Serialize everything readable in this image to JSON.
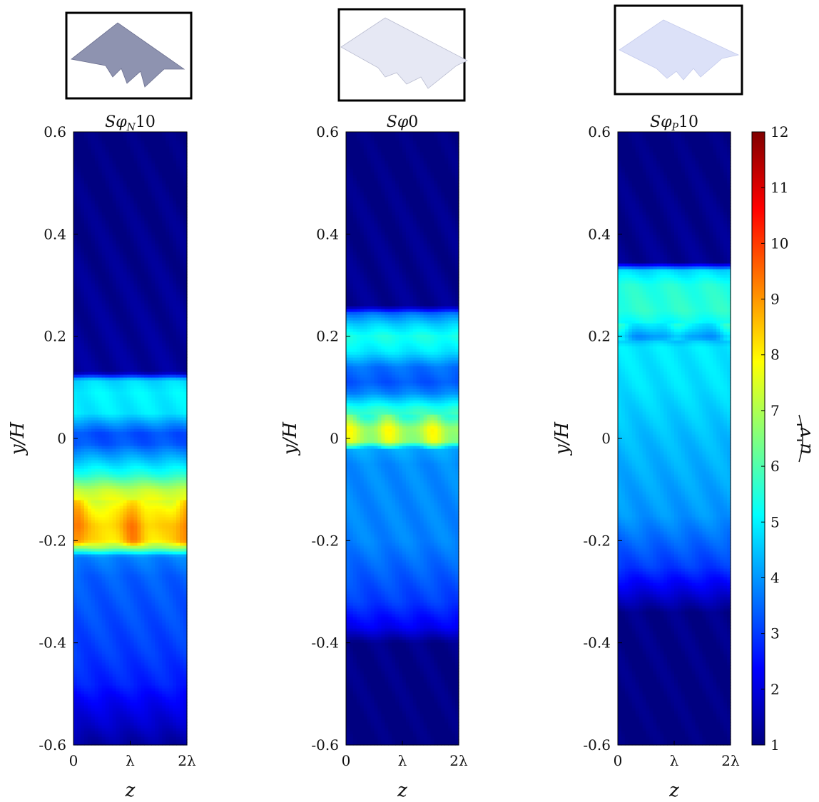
{
  "chart_data": {
    "type": "heatmap",
    "colormap": "jet",
    "colorbar": {
      "label": "u'v'",
      "range": [
        1,
        12
      ],
      "ticks": [
        "1",
        "2",
        "3",
        "4",
        "5",
        "6",
        "7",
        "8",
        "9",
        "10",
        "11",
        "12"
      ]
    },
    "panels": [
      {
        "title_main": "Sφ",
        "title_sub": "N",
        "title_tail": "10",
        "xlabel": "z",
        "ylabel": "y/H",
        "xticks": [
          "0",
          "λ",
          "2λ"
        ],
        "yticks": [
          "-0.6",
          "-0.4",
          "-0.2",
          "0",
          "0.2",
          "0.4",
          "0.6"
        ],
        "xlim": [
          0,
          2
        ],
        "ylim": [
          -0.6,
          0.6
        ],
        "profile": [
          [
            -0.6,
            1.3
          ],
          [
            -0.56,
            1.8
          ],
          [
            -0.52,
            2.2
          ],
          [
            -0.48,
            2.7
          ],
          [
            -0.42,
            3.0
          ],
          [
            -0.35,
            3.2
          ],
          [
            -0.27,
            3.4
          ],
          [
            -0.23,
            3.8
          ],
          [
            -0.215,
            6.5
          ],
          [
            -0.2,
            8.5
          ],
          [
            -0.17,
            8.7
          ],
          [
            -0.14,
            8.2
          ],
          [
            -0.1,
            7.2
          ],
          [
            -0.07,
            5.5
          ],
          [
            -0.04,
            4.4
          ],
          [
            -0.01,
            3.3
          ],
          [
            0.01,
            3.2
          ],
          [
            0.03,
            4.0
          ],
          [
            0.05,
            4.9
          ],
          [
            0.09,
            5.0
          ],
          [
            0.115,
            4.7
          ],
          [
            0.13,
            1.3
          ],
          [
            0.6,
            1.0
          ]
        ],
        "modulation": {
          "amplitude": 1.0,
          "y_from": -0.21,
          "y_to": -0.12,
          "hotspots": [
            0.05,
            1.05,
            2.0
          ]
        }
      },
      {
        "title_main": "Sφ",
        "title_sub": "",
        "title_tail": "0",
        "xlabel": "z",
        "ylabel": "y/H",
        "xticks": [
          "0",
          "λ",
          "2λ"
        ],
        "yticks": [
          "-0.6",
          "-0.4",
          "-0.2",
          "0",
          "0.2",
          "0.4",
          "0.6"
        ],
        "xlim": [
          0,
          2
        ],
        "ylim": [
          -0.6,
          0.6
        ],
        "profile": [
          [
            -0.6,
            1.0
          ],
          [
            -0.4,
            1.1
          ],
          [
            -0.37,
            2.2
          ],
          [
            -0.32,
            3.0
          ],
          [
            -0.2,
            3.8
          ],
          [
            -0.05,
            3.9
          ],
          [
            -0.02,
            4.2
          ],
          [
            -0.005,
            7.0
          ],
          [
            0.02,
            7.2
          ],
          [
            0.04,
            6.0
          ],
          [
            0.06,
            5.5
          ],
          [
            0.09,
            3.8
          ],
          [
            0.11,
            3.3
          ],
          [
            0.14,
            3.6
          ],
          [
            0.17,
            4.9
          ],
          [
            0.2,
            5.4
          ],
          [
            0.225,
            4.6
          ],
          [
            0.245,
            3.6
          ],
          [
            0.26,
            1.2
          ],
          [
            0.6,
            1.0
          ]
        ],
        "modulation": {
          "amplitude": 1.0,
          "y_from": -0.02,
          "y_to": 0.05,
          "hotspots": [
            0.05,
            0.75,
            1.55
          ]
        }
      },
      {
        "title_main": "Sφ",
        "title_sub": "P",
        "title_tail": "10",
        "xlabel": "z",
        "ylabel": "y/H",
        "xticks": [
          "0",
          "λ",
          "2λ"
        ],
        "yticks": [
          "-0.6",
          "-0.4",
          "-0.2",
          "0",
          "0.2",
          "0.4",
          "0.6"
        ],
        "xlim": [
          0,
          2
        ],
        "ylim": [
          -0.6,
          0.6
        ],
        "profile": [
          [
            -0.6,
            1.0
          ],
          [
            -0.34,
            1.1
          ],
          [
            -0.3,
            2.0
          ],
          [
            -0.25,
            3.0
          ],
          [
            -0.15,
            4.0
          ],
          [
            0.0,
            4.4
          ],
          [
            0.1,
            4.8
          ],
          [
            0.18,
            4.9
          ],
          [
            0.2,
            4.2
          ],
          [
            0.22,
            5.0
          ],
          [
            0.25,
            5.6
          ],
          [
            0.3,
            5.5
          ],
          [
            0.33,
            4.7
          ],
          [
            0.345,
            1.2
          ],
          [
            0.6,
            1.0
          ]
        ],
        "modulation": {
          "amplitude": 0.8,
          "y_from": 0.19,
          "y_to": 0.225,
          "hotspots": [
            0.05,
            1.05,
            1.95
          ]
        }
      }
    ]
  }
}
